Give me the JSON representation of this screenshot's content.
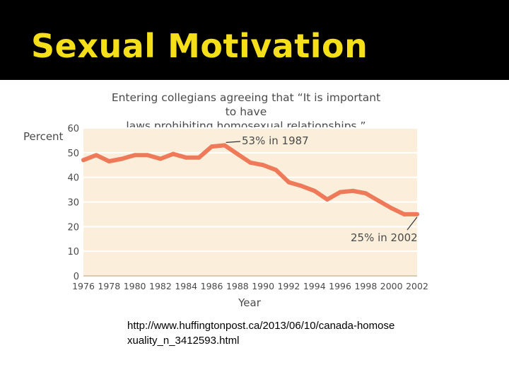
{
  "slide": {
    "title": "Sexual Motivation",
    "source": "http://www.huffingtonpost.ca/2013/06/10/canada-homosexuality_n_3412593.html"
  },
  "colors": {
    "title_bar": "#000000",
    "title_text": "#f5df18",
    "plot_bg": "#fbefdb",
    "line": "#ef7a5a",
    "grid": "#ffffff"
  },
  "chart_data": {
    "type": "line",
    "title": "Entering collegians agreeing that “It is important to have laws prohibiting homosexual relationships.”",
    "title_line1": "Entering collegians agreeing that “It is important to have",
    "title_line2": "laws prohibiting homosexual relationships.”",
    "xlabel": "Year",
    "ylabel": "Percent",
    "xlim": [
      1976,
      2002
    ],
    "ylim": [
      0,
      60
    ],
    "x_ticks": [
      "1976",
      "1978",
      "1980",
      "1982",
      "1984",
      "1986",
      "1988",
      "1990",
      "1992",
      "1994",
      "1996",
      "1998",
      "2000",
      "2002"
    ],
    "y_ticks": [
      "0",
      "10",
      "20",
      "30",
      "40",
      "50",
      "60"
    ],
    "grid": true,
    "series": [
      {
        "x": [
          1976,
          1977,
          1978,
          1979,
          1980,
          1981,
          1982,
          1983,
          1984,
          1985,
          1986,
          1987,
          1988,
          1989,
          1990,
          1991,
          1992,
          1993,
          1994,
          1995,
          1996,
          1997,
          1998,
          1999,
          2000,
          2001,
          2002
        ],
        "values": [
          47,
          49,
          46.5,
          47.5,
          49,
          49,
          47.5,
          49.5,
          48,
          48,
          52.5,
          53,
          49.5,
          46,
          45,
          43,
          38,
          36.5,
          34.5,
          31,
          34,
          34.5,
          33.5,
          30.5,
          27.5,
          25,
          25
        ]
      }
    ],
    "annotations": [
      {
        "text": "53% in 1987",
        "x": 1987,
        "y": 53
      },
      {
        "text": "25% in 2002",
        "x": 2002,
        "y": 25
      }
    ]
  }
}
